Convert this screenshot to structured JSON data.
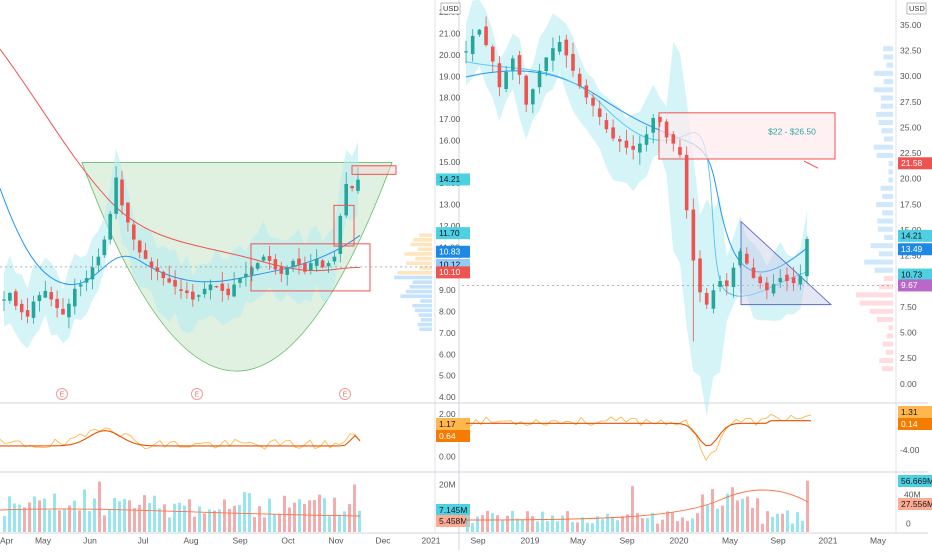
{
  "currency": "USD",
  "colors": {
    "up": "#26a69a",
    "down": "#ef5350",
    "ma_blue": "#2196f3",
    "ma_red": "#ef5350",
    "ma_orange": "#ff7f0e",
    "band": "#b2ebf2",
    "cup": "#c8e6c9",
    "cup_stroke": "#66bb6a",
    "box_red": "#ef5350",
    "triangle": "#3f51b5"
  },
  "left_chart": {
    "y_ticks": [
      "22.00",
      "21.00",
      "20.00",
      "19.00",
      "18.00",
      "17.00",
      "16.00",
      "15.00",
      "14.00",
      "13.00",
      "12.00",
      "11.00",
      "10.00",
      "9.00",
      "8.00",
      "7.00",
      "6.00",
      "5.00",
      "4.00"
    ],
    "y_range": [
      3.9,
      22.6
    ],
    "x_ticks": [
      "Apr",
      "May",
      "Jun",
      "Jul",
      "Aug",
      "Sep",
      "Oct",
      "Nov",
      "Dec",
      "2021"
    ],
    "price_badges": [
      {
        "text": "14.21",
        "color": "#4dd0e1"
      },
      {
        "text": "11.70",
        "color": "#4dd0e1"
      },
      {
        "text": "10.83",
        "color": "#1e88e5"
      },
      {
        "text": "10.12",
        "color": "#90caf9"
      },
      {
        "text": "10.10",
        "color": "#ef5350"
      }
    ],
    "earnings_markers": [
      "E",
      "E",
      "E"
    ],
    "osc_ticks": [
      "2.00",
      "1.00",
      "0.00"
    ],
    "osc_badges": [
      {
        "text": "1.17",
        "color": "#ffb74d"
      },
      {
        "text": "0.64",
        "color": "#f57c00"
      }
    ],
    "vol_ticks": [
      "20M"
    ],
    "vol_badges": [
      {
        "text": "7.145M",
        "color": "#4dd0e1"
      },
      {
        "text": "5.458M",
        "color": "#ffab91"
      }
    ]
  },
  "right_chart": {
    "y_ticks": [
      "35.00",
      "32.50",
      "30.00",
      "27.50",
      "25.00",
      "22.50",
      "20.00",
      "17.50",
      "15.00",
      "12.50",
      "10.00",
      "7.50",
      "5.00",
      "2.50",
      "0.00"
    ],
    "y_range": [
      -1.5,
      37.5
    ],
    "x_ticks": [
      "Sep",
      "2019",
      "May",
      "Sep",
      "2020",
      "May",
      "Sep",
      "2021",
      "May"
    ],
    "price_badges": [
      {
        "text": "21.58",
        "color": "#ef5350"
      },
      {
        "text": "14.21",
        "color": "#4dd0e1"
      },
      {
        "text": "13.49",
        "color": "#1e88e5"
      },
      {
        "text": "10.73",
        "color": "#4dd0e1"
      },
      {
        "text": "9.67",
        "color": "#ba68c8"
      }
    ],
    "target_label": "$22 - $26.50",
    "osc_ticks": [
      "-4.00"
    ],
    "osc_badges": [
      {
        "text": "1.31",
        "color": "#ffb74d"
      },
      {
        "text": "0.14",
        "color": "#f57c00"
      }
    ],
    "vol_ticks": [
      "40M",
      "0"
    ],
    "vol_badges": [
      {
        "text": "56.669M",
        "color": "#4dd0e1"
      },
      {
        "text": "27.556M",
        "color": "#ffab91"
      }
    ]
  },
  "chart_data": [
    {
      "type": "candlestick",
      "title": "",
      "ylabel": "USD",
      "ylim": [
        4,
        22
      ],
      "x_range": [
        "Apr 2020",
        "2021"
      ],
      "close_series": [
        8.6,
        8.9,
        8.3,
        8.0,
        7.8,
        8.5,
        8.8,
        9.0,
        8.6,
        8.2,
        7.9,
        8.4,
        9.1,
        9.3,
        9.6,
        10.1,
        10.6,
        11.4,
        12.6,
        14.3,
        13.0,
        12.2,
        11.4,
        10.8,
        10.5,
        10.1,
        9.9,
        9.6,
        9.4,
        9.2,
        9.0,
        8.9,
        8.6,
        8.8,
        9.1,
        9.3,
        9.2,
        9.0,
        8.8,
        9.3,
        9.6,
        9.8,
        10.1,
        10.3,
        10.6,
        10.4,
        10.0,
        9.8,
        10.1,
        10.4,
        10.2,
        9.9,
        10.3,
        10.5,
        10.1,
        10.3,
        10.6,
        12.5,
        14.0,
        13.8,
        14.2
      ],
      "annotations": [
        "cup and handle pattern",
        "consolidation box ~9.0-11.2",
        "handle breakout box"
      ],
      "last_close": 14.21
    },
    {
      "type": "candlestick",
      "title": "",
      "ylabel": "USD",
      "ylim": [
        0,
        35
      ],
      "x_range": [
        "Sep 2018",
        "May 2021"
      ],
      "close_series": [
        32.5,
        34.0,
        34.6,
        33.1,
        31.5,
        29.0,
        30.5,
        31.8,
        30.2,
        27.3,
        28.8,
        30.6,
        31.9,
        32.8,
        33.4,
        32.1,
        30.6,
        29.1,
        28.0,
        27.2,
        26.1,
        24.9,
        24.0,
        23.7,
        23.1,
        22.9,
        23.5,
        24.4,
        26.0,
        25.6,
        24.1,
        23.5,
        22.4,
        17.0,
        12.1,
        9.0,
        7.8,
        9.2,
        10.1,
        9.6,
        11.4,
        13.0,
        11.8,
        10.4,
        9.9,
        9.2,
        9.8,
        10.4,
        10.1,
        9.9,
        10.6,
        14.2
      ],
      "annotations": [
        "target zone $22 - $26.50",
        "descending triangle"
      ],
      "last_close": 14.21
    }
  ]
}
